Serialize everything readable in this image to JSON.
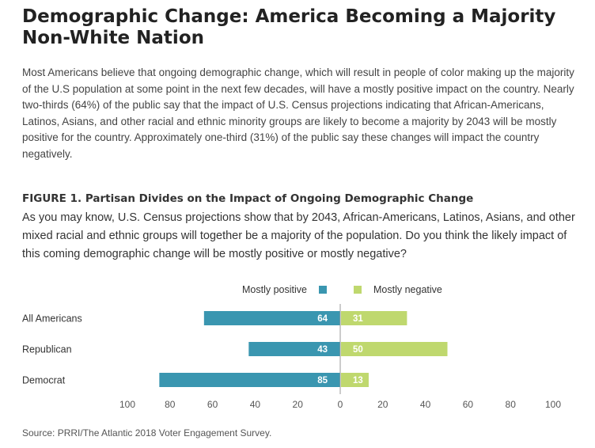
{
  "headline": "Demographic Change: America Becoming a Majority Non-White Nation",
  "intro": "Most Americans believe that ongoing demographic change, which will result in people of color making up the majority of the U.S population at some point in the next few decades, will have a mostly positive impact on the country. Nearly two-thirds (64%) of the public say that the impact of U.S. Census projections indicating that African-Americans, Latinos, Asians, and other racial and ethnic minority groups are likely to become a majority by 2043 will be mostly positive for the country. Approximately one-third (31%) of the public say these changes will impact the country negatively.",
  "figure": {
    "title": "FIGURE 1. Partisan Divides on the Impact of Ongoing Demographic Change",
    "question": "As you may know, U.S. Census projections show that by 2043, African-Americans, Latinos, Asians, and other mixed racial and ethnic groups will together be a majority of the population. Do you think the likely impact of this coming demographic change will be mostly positive or mostly negative?"
  },
  "chart_data": {
    "type": "bar",
    "orientation": "horizontal-diverging",
    "categories": [
      "All Americans",
      "Republican",
      "Democrat"
    ],
    "series": [
      {
        "name": "Mostly positive",
        "values": [
          64,
          43,
          85
        ],
        "color": "#3a96b0",
        "direction": "left"
      },
      {
        "name": "Mostly negative",
        "values": [
          31,
          50,
          13
        ],
        "color": "#bfd86e",
        "direction": "right"
      }
    ],
    "xlim": [
      -100,
      100
    ],
    "tick_values": [
      -100,
      -80,
      -60,
      -40,
      -20,
      0,
      20,
      40,
      60,
      80,
      100
    ],
    "tick_labels": [
      "100",
      "80",
      "60",
      "40",
      "20",
      "0",
      "20",
      "40",
      "60",
      "80",
      "100"
    ],
    "legend_position": "top",
    "grid": false
  },
  "source": "Source: PRRI/The Atlantic 2018 Voter Engagement Survey."
}
